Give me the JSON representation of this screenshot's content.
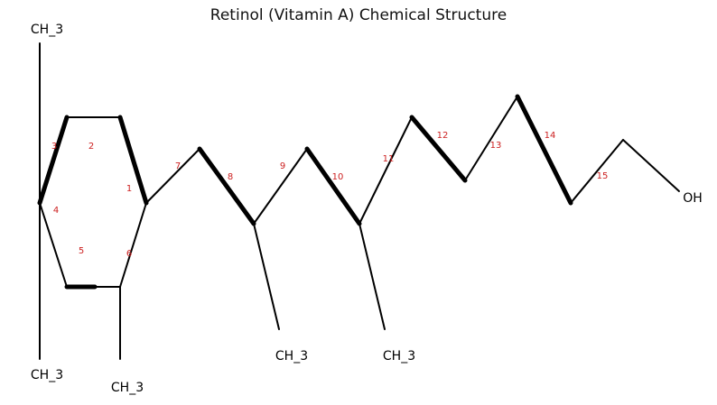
{
  "title": "Retinol (Vitamin A) Chemical Structure",
  "labels": [
    "CH_3",
    "CH_3",
    "CH_3",
    "CH_3",
    "CH_3",
    "OH"
  ],
  "numbers": [
    "1",
    "2",
    "3",
    "4",
    "5",
    "6",
    "7",
    "8",
    "9",
    "10",
    "11",
    "12",
    "13",
    "14",
    "15"
  ]
}
